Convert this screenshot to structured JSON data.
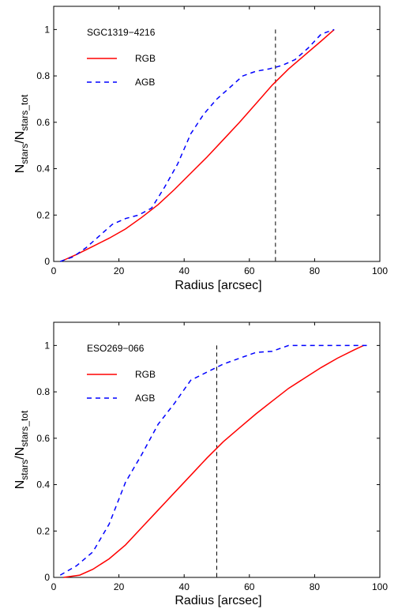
{
  "chart_data": [
    {
      "type": "line",
      "title": "",
      "xlabel": "Radius [arcsec]",
      "ylabel_main": "N",
      "ylabel_sub1": "stars",
      "ylabel_sep": "/N",
      "ylabel_sub2": "stars_tot",
      "xlim": [
        0,
        100
      ],
      "ylim": [
        0,
        1.1
      ],
      "xticks": [
        0,
        20,
        40,
        60,
        80,
        100
      ],
      "yticks": [
        0,
        0.2,
        0.4,
        0.6,
        0.8,
        1
      ],
      "xtick_labels": [
        "0",
        "20",
        "40",
        "60",
        "80",
        "100"
      ],
      "ytick_labels": [
        "0",
        "0.2",
        "0.4",
        "0.6",
        "0.8",
        "1"
      ],
      "grid": false,
      "annotation": "SGC1319−4216",
      "legend_placement": "top-left",
      "vline_x": 68,
      "vline_color": "#000000",
      "series": [
        {
          "name": "RGB",
          "color": "#ff0000",
          "dash": "solid",
          "x": [
            3,
            7,
            12,
            17,
            22,
            27,
            32,
            37,
            42,
            47,
            52,
            57,
            62,
            67,
            72,
            77,
            82,
            86
          ],
          "y": [
            0.005,
            0.03,
            0.065,
            0.1,
            0.14,
            0.19,
            0.245,
            0.31,
            0.38,
            0.45,
            0.525,
            0.6,
            0.68,
            0.76,
            0.83,
            0.89,
            0.95,
            1.0
          ]
        },
        {
          "name": "AGB",
          "color": "#0000ff",
          "dash": "dashed",
          "x": [
            2,
            6,
            10,
            14,
            18,
            22,
            26,
            30,
            34,
            38,
            42,
            46,
            50,
            54,
            58,
            62,
            66,
            70,
            74,
            78,
            82,
            86
          ],
          "y": [
            0.0,
            0.02,
            0.06,
            0.11,
            0.16,
            0.185,
            0.2,
            0.23,
            0.32,
            0.42,
            0.55,
            0.635,
            0.7,
            0.75,
            0.8,
            0.82,
            0.83,
            0.845,
            0.87,
            0.92,
            0.98,
            1.0
          ]
        }
      ]
    },
    {
      "type": "line",
      "title": "",
      "xlabel": "Radius [arcsec]",
      "ylabel_main": "N",
      "ylabel_sub1": "stars",
      "ylabel_sep": "/N",
      "ylabel_sub2": "stars_tot",
      "xlim": [
        0,
        100
      ],
      "ylim": [
        0,
        1.1
      ],
      "xticks": [
        0,
        20,
        40,
        60,
        80,
        100
      ],
      "yticks": [
        0,
        0.2,
        0.4,
        0.6,
        0.8,
        1
      ],
      "xtick_labels": [
        "0",
        "20",
        "40",
        "60",
        "80",
        "100"
      ],
      "ytick_labels": [
        "0",
        "0.2",
        "0.4",
        "0.6",
        "0.8",
        "1"
      ],
      "grid": false,
      "annotation": "ESO269−066",
      "legend_placement": "top-left",
      "vline_x": 50,
      "vline_color": "#000000",
      "series": [
        {
          "name": "RGB",
          "color": "#ff0000",
          "dash": "solid",
          "x": [
            3,
            8,
            12,
            17,
            22,
            27,
            32,
            37,
            42,
            47,
            52,
            57,
            62,
            67,
            72,
            77,
            82,
            87,
            92,
            95
          ],
          "y": [
            0.0,
            0.01,
            0.035,
            0.08,
            0.14,
            0.215,
            0.29,
            0.365,
            0.44,
            0.515,
            0.585,
            0.645,
            0.705,
            0.76,
            0.815,
            0.86,
            0.905,
            0.945,
            0.98,
            1.0
          ]
        },
        {
          "name": "AGB",
          "color": "#0000ff",
          "dash": "dashed",
          "x": [
            2,
            7,
            12,
            17,
            22,
            27,
            32,
            37,
            42,
            47,
            52,
            57,
            62,
            67,
            72,
            77,
            82,
            87,
            92,
            96
          ],
          "y": [
            0.01,
            0.05,
            0.11,
            0.23,
            0.41,
            0.53,
            0.66,
            0.75,
            0.85,
            0.885,
            0.92,
            0.945,
            0.97,
            0.975,
            1.0,
            1.0,
            1.0,
            1.0,
            1.0,
            1.0
          ]
        }
      ]
    }
  ]
}
